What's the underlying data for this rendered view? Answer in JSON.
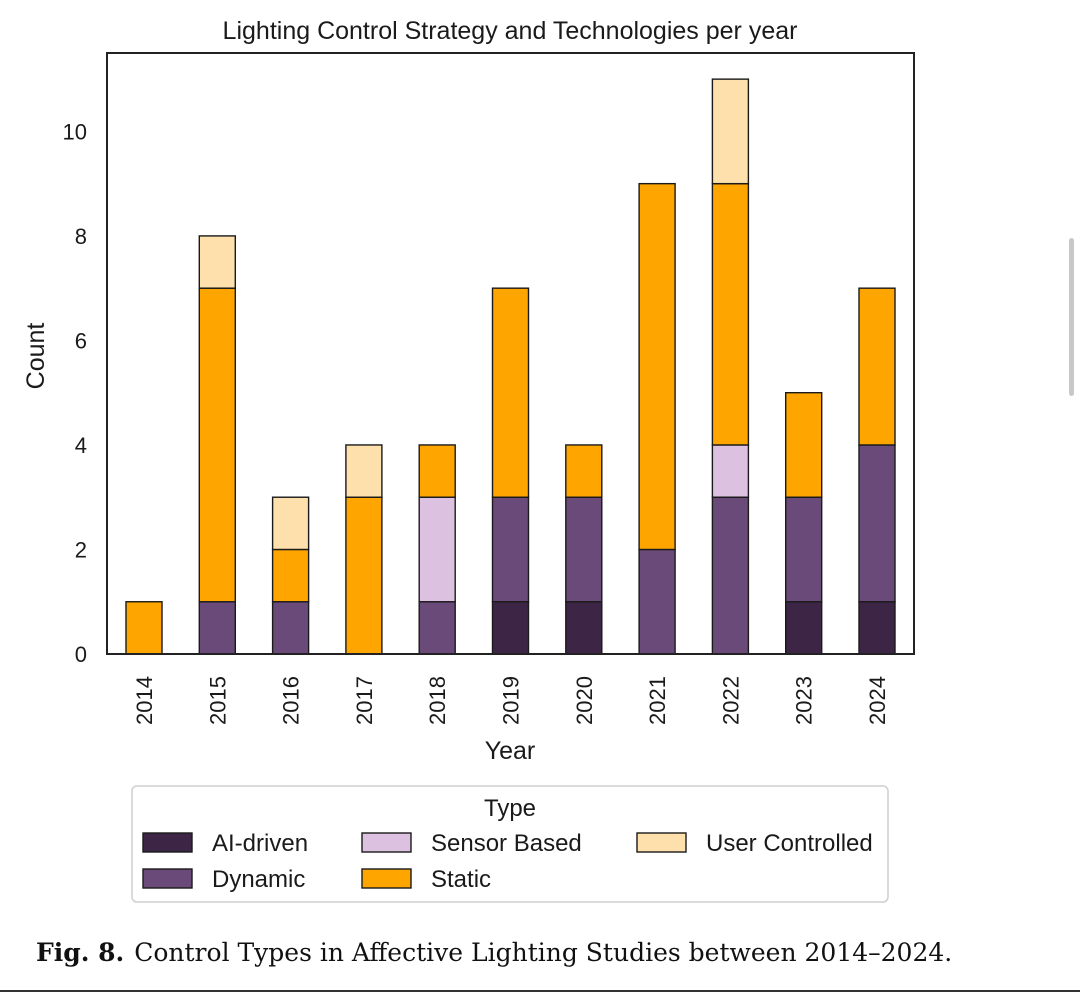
{
  "chart_data": {
    "type": "bar",
    "stacked": true,
    "title": "Lighting Control Strategy and Technologies per year",
    "xlabel": "Year",
    "ylabel": "Count",
    "ylim": [
      0,
      11.5
    ],
    "yticks": [
      "0",
      "2",
      "4",
      "6",
      "8",
      "10"
    ],
    "categories": [
      "2014",
      "2015",
      "2016",
      "2017",
      "2018",
      "2019",
      "2020",
      "2021",
      "2022",
      "2023",
      "2024"
    ],
    "series": [
      {
        "name": "AI-driven",
        "color": "#3d2645",
        "values": [
          0,
          0,
          0,
          0,
          0,
          1,
          1,
          0,
          0,
          1,
          1
        ]
      },
      {
        "name": "Dynamic",
        "color": "#6a4a78",
        "values": [
          0,
          1,
          1,
          0,
          1,
          2,
          2,
          2,
          3,
          2,
          3
        ]
      },
      {
        "name": "Sensor Based",
        "color": "#dcc2e0",
        "values": [
          0,
          0,
          0,
          0,
          2,
          0,
          0,
          0,
          1,
          0,
          0
        ]
      },
      {
        "name": "Static",
        "color": "#ffa500",
        "values": [
          1,
          6,
          1,
          3,
          1,
          4,
          1,
          7,
          5,
          2,
          3
        ]
      },
      {
        "name": "User Controlled",
        "color": "#fde0ab",
        "values": [
          0,
          1,
          1,
          1,
          0,
          0,
          0,
          0,
          2,
          0,
          0
        ]
      }
    ],
    "legend": {
      "title": "Type",
      "placement": "below",
      "entries": [
        "AI-driven",
        "Dynamic",
        "Sensor Based",
        "Static",
        "User Controlled"
      ]
    }
  },
  "caption": {
    "label": "Fig. 8.",
    "text": "Control Types in Affective Lighting Studies between 2014–2024."
  }
}
